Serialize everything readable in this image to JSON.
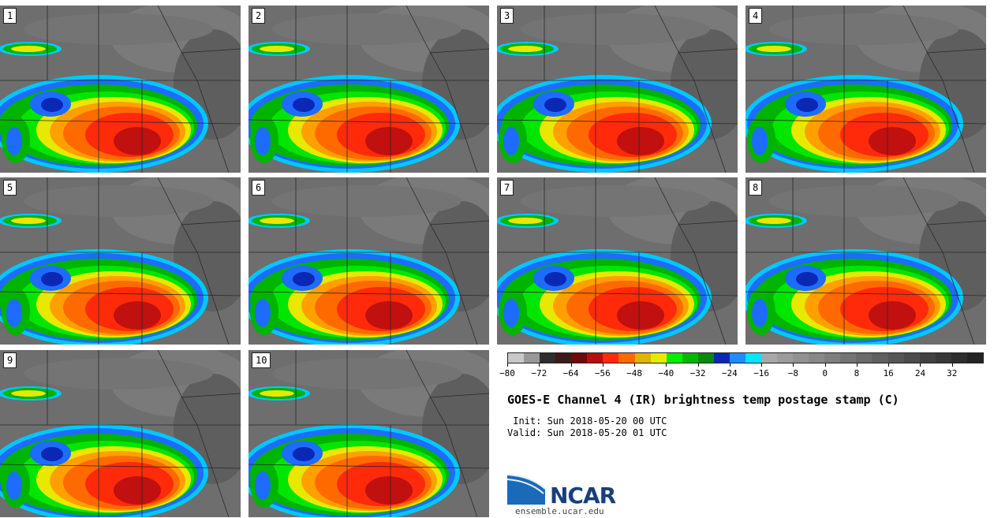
{
  "panels": [
    {
      "label": "1"
    },
    {
      "label": "2"
    },
    {
      "label": "3"
    },
    {
      "label": "4"
    },
    {
      "label": "5"
    },
    {
      "label": "6"
    },
    {
      "label": "7"
    },
    {
      "label": "8"
    },
    {
      "label": "9"
    },
    {
      "label": "10"
    }
  ],
  "colorbar": {
    "colors": [
      "#c8c8c8",
      "#989898",
      "#2e2e2e",
      "#3c1a1a",
      "#6e0a0a",
      "#b80e0e",
      "#ff2a0a",
      "#ff6a00",
      "#e0b400",
      "#e8e800",
      "#00ee00",
      "#00b800",
      "#0a8a0a",
      "#0a28b4",
      "#1e8cff",
      "#00e6ff",
      "#a8a8a8",
      "#9c9c9c",
      "#929292",
      "#888888",
      "#7e7e7e",
      "#747474",
      "#6a6a6a",
      "#606060",
      "#565656",
      "#4c4c4c",
      "#424242",
      "#383838",
      "#2e2e2e",
      "#242424"
    ],
    "tick_labels": [
      "−80",
      "−72",
      "−64",
      "−56",
      "−48",
      "−40",
      "−32",
      "−24",
      "−16",
      "−8",
      "0",
      "8",
      "16",
      "24",
      "32"
    ]
  },
  "title": "GOES-E Channel 4 (IR) brightness temp postage stamp (C)",
  "init": " Init: Sun 2018-05-20 00 UTC",
  "valid": "Valid: Sun 2018-05-20 01 UTC",
  "logo": {
    "text": "NCAR",
    "site": "ensemble.ucar.edu"
  }
}
